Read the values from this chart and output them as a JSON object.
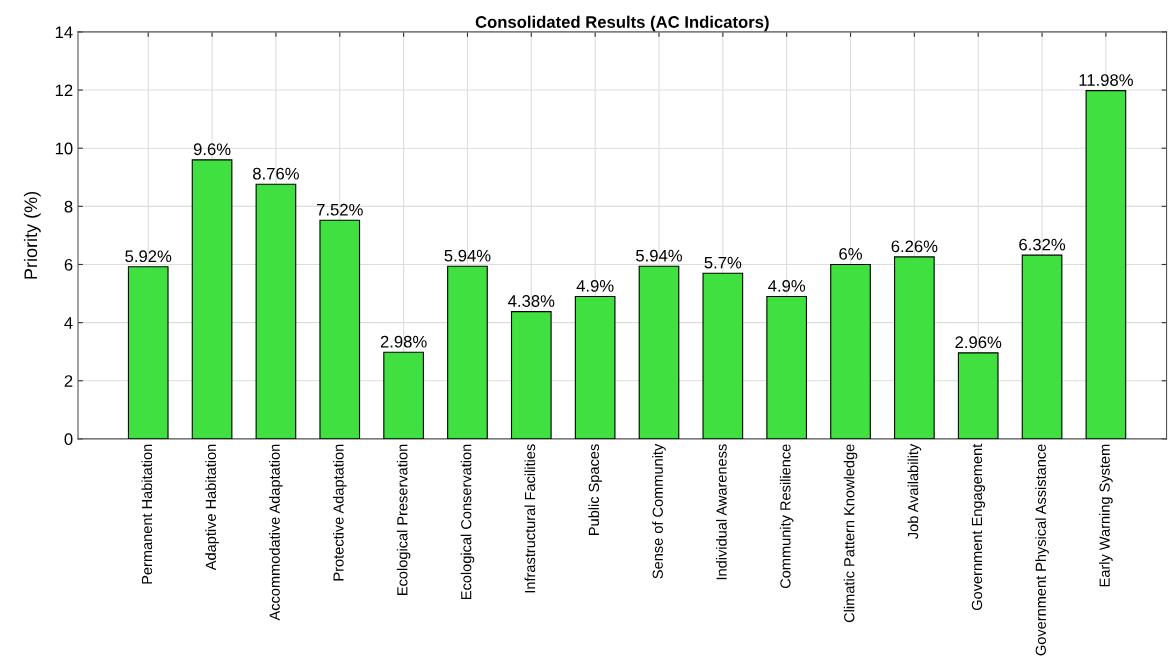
{
  "chart_data": {
    "type": "bar",
    "title": "Consolidated Results (AC Indicators)",
    "ylabel": "Priority (%)",
    "categories": [
      "Permanent Habitation",
      "Adaptive Habitation",
      "Accommodative Adaptation",
      "Protective Adaptation",
      "Ecological Preservation",
      "Ecological Conservation",
      "Infrastructural Facilities",
      "Public Spaces",
      "Sense of Community",
      "Individual Awareness",
      "Community Resilience",
      "Climatic Pattern Knowledge",
      "Job Availability",
      "Government Engagement",
      "Government Physical Assistance",
      "Early Warning System"
    ],
    "values": [
      5.92,
      9.6,
      8.76,
      7.52,
      2.98,
      5.94,
      4.38,
      4.9,
      5.94,
      5.7,
      4.9,
      6,
      6.26,
      2.96,
      6.32,
      11.98
    ],
    "value_labels": [
      "5.92%",
      "9.6%",
      "8.76%",
      "7.52%",
      "2.98%",
      "5.94%",
      "4.38%",
      "4.9%",
      "5.94%",
      "5.7%",
      "4.9%",
      "6%",
      "6.26%",
      "2.96%",
      "6.32%",
      "11.98%"
    ],
    "color": "#40e040",
    "ylim": [
      0,
      14
    ],
    "yticks": [
      0,
      2,
      4,
      6,
      8,
      10,
      12,
      14
    ],
    "grid": true
  }
}
